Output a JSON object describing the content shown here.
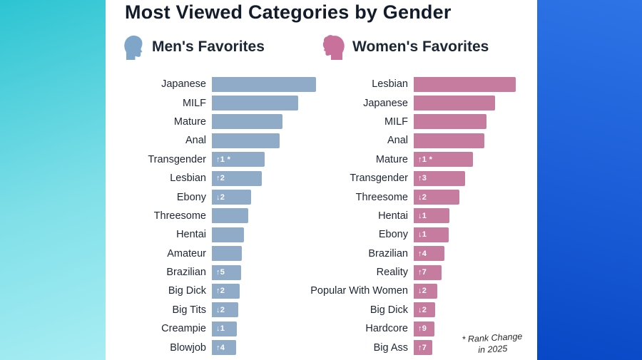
{
  "title": "Most Viewed Categories by Gender",
  "footnote_line1": "* Rank Change",
  "footnote_line2": "in 2025",
  "colors": {
    "men_bar": "#8FABC8",
    "women_bar": "#C67C9F",
    "men_icon": "#7FA6C9",
    "women_icon": "#C8729B",
    "badge_text": "#FFFFFF",
    "label_text": "#1D2634",
    "title_text": "#131C2B",
    "panel_bg": "#FFFFFF",
    "left_strip_gradient": [
      "#2CC4D2",
      "#A8EDF3"
    ],
    "right_strip_gradient": [
      "#2E74E6",
      "#0847C5"
    ]
  },
  "sections": [
    {
      "label": "Men's Favorites",
      "icon": "male-profile-icon"
    },
    {
      "label": "Women's Favorites",
      "icon": "female-profile-icon"
    }
  ],
  "chart_data": [
    {
      "type": "bar",
      "orientation": "horizontal",
      "title": "Men's Favorites",
      "value_unit": "relative popularity, percent of top category",
      "legend_position": "none",
      "grid": false,
      "categories": [
        "Japanese",
        "MILF",
        "Mature",
        "Anal",
        "Transgender",
        "Lesbian",
        "Ebony",
        "Threesome",
        "Hentai",
        "Amateur",
        "Brazilian",
        "Big Dick",
        "Big Tits",
        "Creampie",
        "Blowjob"
      ],
      "values": [
        100,
        83,
        68,
        65,
        51,
        48,
        38,
        35,
        31,
        29,
        28,
        27,
        25,
        24,
        23
      ],
      "rank_changes": [
        "",
        "",
        "",
        "",
        "↑1 *",
        "↑2",
        "↓2",
        "",
        "",
        "",
        "↑5",
        "↑2",
        "↓2",
        "↓1",
        "↑4"
      ],
      "bar_color": "#8FABC8"
    },
    {
      "type": "bar",
      "orientation": "horizontal",
      "title": "Women's Favorites",
      "value_unit": "relative popularity, percent of top category",
      "legend_position": "none",
      "grid": false,
      "categories": [
        "Lesbian",
        "Japanese",
        "MILF",
        "Anal",
        "Mature",
        "Transgender",
        "Threesome",
        "Hentai",
        "Ebony",
        "Brazilian",
        "Reality",
        "Popular With Women",
        "Big Dick",
        "Hardcore",
        "Big Ass"
      ],
      "values": [
        100,
        80,
        71,
        69,
        58,
        50,
        45,
        35,
        34,
        30,
        27,
        23,
        21,
        20,
        18
      ],
      "rank_changes": [
        "",
        "",
        "",
        "",
        "↑1 *",
        "↑3",
        "↓2",
        "↓1",
        "↓1",
        "↑4",
        "↑7",
        "↓2",
        "↓2",
        "↑9",
        "↑7"
      ],
      "bar_color": "#C67C9F"
    }
  ]
}
